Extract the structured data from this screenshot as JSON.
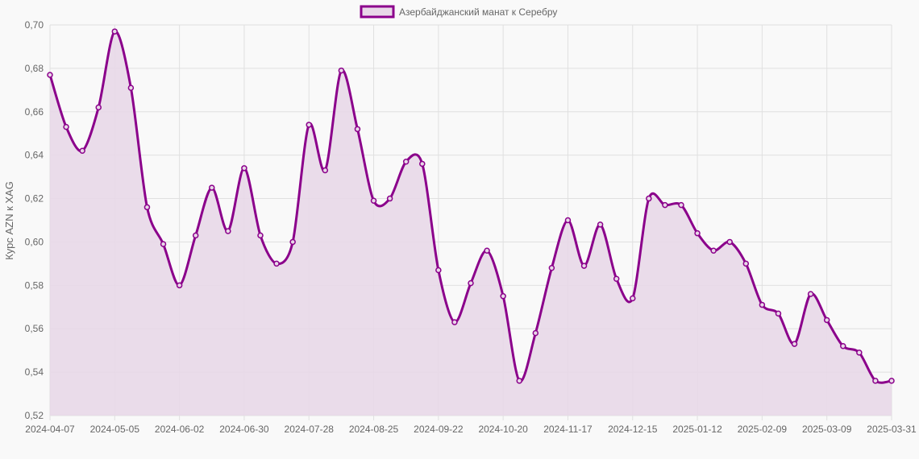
{
  "chart_data": {
    "type": "area",
    "legend": {
      "label": "Азербайджанский манат к Серебру",
      "placement": "top"
    },
    "ylabel": "Курс AZN к XAG",
    "xlabel": "",
    "ylim": [
      0.52,
      0.7
    ],
    "yticks": [
      "0,52",
      "0,54",
      "0,56",
      "0,58",
      "0,60",
      "0,62",
      "0,64",
      "0,66",
      "0,68",
      "0,70"
    ],
    "grid": true,
    "colors": {
      "line": "#8b008b",
      "fill": "#e8d8e8",
      "grid": "#e0e0e0"
    },
    "x": [
      "2024-04-07",
      "2024-04-14",
      "2024-04-21",
      "2024-04-28",
      "2024-05-05",
      "2024-05-12",
      "2024-05-19",
      "2024-05-26",
      "2024-06-02",
      "2024-06-09",
      "2024-06-16",
      "2024-06-23",
      "2024-06-30",
      "2024-07-07",
      "2024-07-14",
      "2024-07-21",
      "2024-07-28",
      "2024-08-04",
      "2024-08-11",
      "2024-08-18",
      "2024-08-25",
      "2024-09-01",
      "2024-09-08",
      "2024-09-15",
      "2024-09-22",
      "2024-09-29",
      "2024-10-06",
      "2024-10-13",
      "2024-10-20",
      "2024-10-27",
      "2024-11-03",
      "2024-11-10",
      "2024-11-17",
      "2024-11-24",
      "2024-12-01",
      "2024-12-08",
      "2024-12-15",
      "2024-12-22",
      "2024-12-29",
      "2025-01-05",
      "2025-01-12",
      "2025-01-19",
      "2025-01-26",
      "2025-02-02",
      "2025-02-09",
      "2025-02-16",
      "2025-02-23",
      "2025-03-02",
      "2025-03-09",
      "2025-03-16",
      "2025-03-23",
      "2025-03-30",
      "2025-03-31"
    ],
    "xtick_labels": [
      "2024-04-07",
      "2024-05-05",
      "2024-06-02",
      "2024-06-30",
      "2024-07-28",
      "2024-08-25",
      "2024-09-22",
      "2024-10-20",
      "2024-11-17",
      "2024-12-15",
      "2025-01-12",
      "2025-02-09",
      "2025-03-09",
      "2025-03-31"
    ],
    "series": [
      {
        "name": "Азербайджанский манат к Серебру",
        "values": [
          0.677,
          0.653,
          0.642,
          0.662,
          0.697,
          0.671,
          0.616,
          0.599,
          0.58,
          0.603,
          0.625,
          0.605,
          0.634,
          0.603,
          0.59,
          0.6,
          0.654,
          0.633,
          0.679,
          0.652,
          0.619,
          0.62,
          0.637,
          0.636,
          0.587,
          0.563,
          0.581,
          0.596,
          0.575,
          0.536,
          0.558,
          0.588,
          0.61,
          0.589,
          0.608,
          0.583,
          0.574,
          0.62,
          0.617,
          0.617,
          0.604,
          0.596,
          0.6,
          0.59,
          0.571,
          0.567,
          0.553,
          0.576,
          0.564,
          0.552,
          0.549,
          0.536,
          0.536
        ]
      }
    ]
  }
}
